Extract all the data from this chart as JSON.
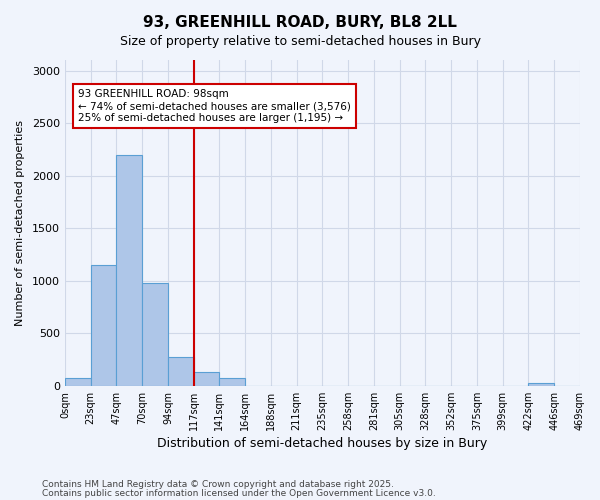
{
  "title_line1": "93, GREENHILL ROAD, BURY, BL8 2LL",
  "title_line2": "Size of property relative to semi-detached houses in Bury",
  "xlabel": "Distribution of semi-detached houses by size in Bury",
  "ylabel": "Number of semi-detached properties",
  "bar_values": [
    75,
    1150,
    2200,
    975,
    270,
    130,
    70,
    0,
    0,
    0,
    0,
    0,
    0,
    0,
    0,
    0,
    0,
    0,
    30,
    0
  ],
  "bin_labels": [
    "0sqm",
    "23sqm",
    "47sqm",
    "70sqm",
    "94sqm",
    "117sqm",
    "141sqm",
    "164sqm",
    "188sqm",
    "211sqm",
    "235sqm",
    "258sqm",
    "281sqm",
    "305sqm",
    "328sqm",
    "352sqm",
    "375sqm",
    "399sqm",
    "422sqm",
    "446sqm",
    "469sqm"
  ],
  "bar_color": "#aec6e8",
  "bar_edge_color": "#5a9fd4",
  "grid_color": "#d0d8e8",
  "background_color": "#f0f4fc",
  "vline_x": 5.0,
  "vline_color": "#cc0000",
  "annotation_text": "93 GREENHILL ROAD: 98sqm\n← 74% of semi-detached houses are smaller (3,576)\n25% of semi-detached houses are larger (1,195) →",
  "annotation_box_color": "#cc0000",
  "ylim": [
    0,
    3100
  ],
  "yticks": [
    0,
    500,
    1000,
    1500,
    2000,
    2500,
    3000
  ],
  "footer_line1": "Contains HM Land Registry data © Crown copyright and database right 2025.",
  "footer_line2": "Contains public sector information licensed under the Open Government Licence v3.0."
}
